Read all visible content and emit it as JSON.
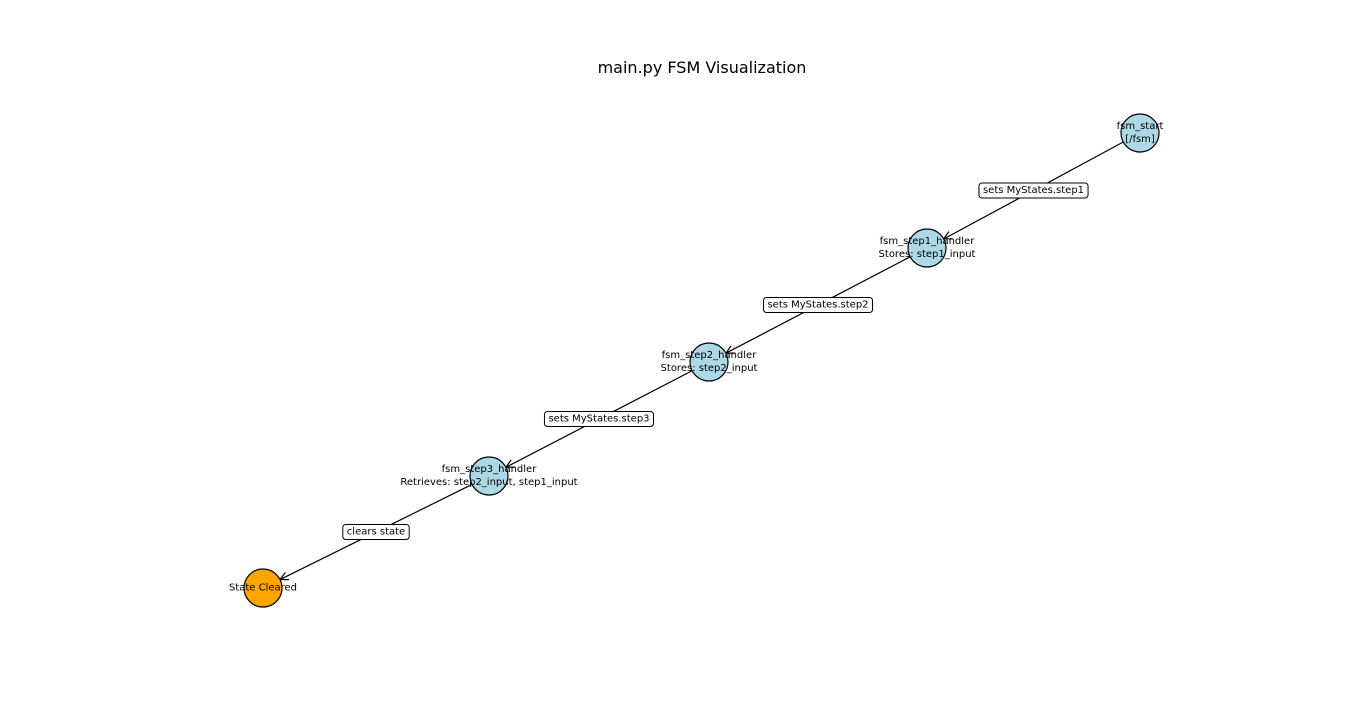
{
  "title": "main.py FSM Visualization",
  "colors": {
    "state_node": "#add8e6",
    "terminal_node": "#ffa500",
    "stroke": "#000000",
    "label_box": "#ffffff"
  },
  "nodes": [
    {
      "id": "fsm_start",
      "lines": [
        "fsm_start",
        "[/fsm]"
      ],
      "kind": "state"
    },
    {
      "id": "fsm_step1_handler",
      "lines": [
        "fsm_step1_handler",
        "Stores: step1_input"
      ],
      "kind": "state"
    },
    {
      "id": "fsm_step2_handler",
      "lines": [
        "fsm_step2_handler",
        "Stores: step2_input"
      ],
      "kind": "state"
    },
    {
      "id": "fsm_step3_handler",
      "lines": [
        "fsm_step3_handler",
        "Retrieves: step2_input, step1_input"
      ],
      "kind": "state"
    },
    {
      "id": "state_cleared",
      "lines": [
        "State Cleared"
      ],
      "kind": "terminal"
    }
  ],
  "edges": [
    {
      "from": "fsm_start",
      "to": "fsm_step1_handler",
      "label": "sets MyStates.step1"
    },
    {
      "from": "fsm_step1_handler",
      "to": "fsm_step2_handler",
      "label": "sets MyStates.step2"
    },
    {
      "from": "fsm_step2_handler",
      "to": "fsm_step3_handler",
      "label": "sets MyStates.step3"
    },
    {
      "from": "fsm_step3_handler",
      "to": "state_cleared",
      "label": "clears state"
    }
  ]
}
